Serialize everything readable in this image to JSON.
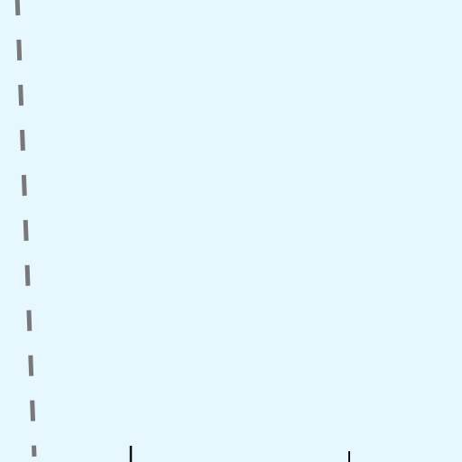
{
  "map": {
    "background_color": "#e6f8fd",
    "features": [
      {
        "kind": "boundary-line",
        "style": "dashed",
        "color": "#787878"
      },
      {
        "kind": "tick-mark",
        "color": "#111111"
      },
      {
        "kind": "tick-mark",
        "color": "#111111"
      }
    ]
  }
}
